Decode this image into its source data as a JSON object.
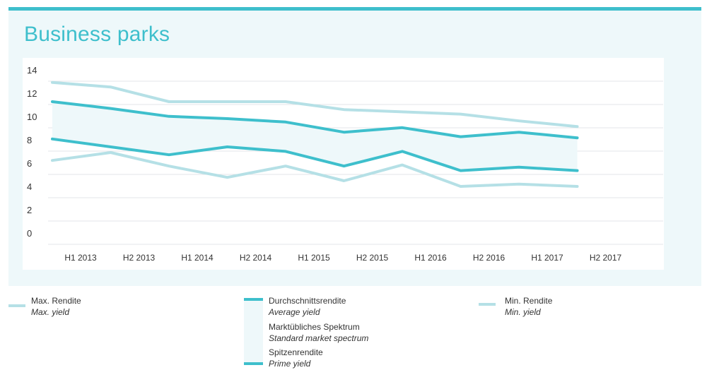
{
  "title": "Business parks",
  "colors": {
    "accent": "#3ebfcc",
    "average_line": "#3ebfcc",
    "prime_line": "#3ebfcc",
    "max_line": "#b5e0e6",
    "min_line": "#b5e0e6",
    "spectrum_fill": "#eef8fa",
    "panel_bg": "#eef8fa"
  },
  "chart_data": {
    "type": "line",
    "title": "Business parks",
    "xlabel": "",
    "ylabel": "",
    "ylim": [
      0,
      14
    ],
    "yticks": [
      "14",
      "12",
      "10",
      "8",
      "6",
      "4",
      "2",
      "0"
    ],
    "grid": true,
    "categories": [
      "H1 2013",
      "H2 2013",
      "H1 2014",
      "H2 2014",
      "H1 2015",
      "H2 2015",
      "H1 2016",
      "H2 2016",
      "H1 2017",
      "H2 2017"
    ],
    "series": [
      {
        "name": "Max. Rendite",
        "role": "max",
        "values": [
          13.2,
          12.8,
          11.5,
          11.5,
          11.5,
          10.8,
          10.6,
          10.4,
          9.8,
          9.3
        ]
      },
      {
        "name": "Durchschnittsrendite",
        "role": "average",
        "values": [
          11.5,
          10.9,
          10.2,
          10.0,
          9.7,
          8.8,
          9.2,
          8.4,
          8.8,
          8.3
        ]
      },
      {
        "name": "Spitzenrendite",
        "role": "prime",
        "values": [
          8.2,
          7.5,
          6.8,
          7.5,
          7.1,
          5.8,
          7.1,
          5.4,
          5.7,
          5.4
        ]
      },
      {
        "name": "Min. Rendite",
        "role": "min",
        "values": [
          6.3,
          7.0,
          5.8,
          4.8,
          5.8,
          4.5,
          5.9,
          4.0,
          4.2,
          4.0
        ]
      }
    ]
  },
  "legend": {
    "max": {
      "de": "Max. Rendite",
      "en": "Max. yield"
    },
    "average": {
      "de": "Durchschnittsrendite",
      "en": "Average yield"
    },
    "spectrum": {
      "de": "Marktübliches Spektrum",
      "en": "Standard market spectrum"
    },
    "prime": {
      "de": "Spitzenrendite",
      "en": "Prime yield"
    },
    "min": {
      "de": "Min. Rendite",
      "en": "Min. yield"
    }
  }
}
